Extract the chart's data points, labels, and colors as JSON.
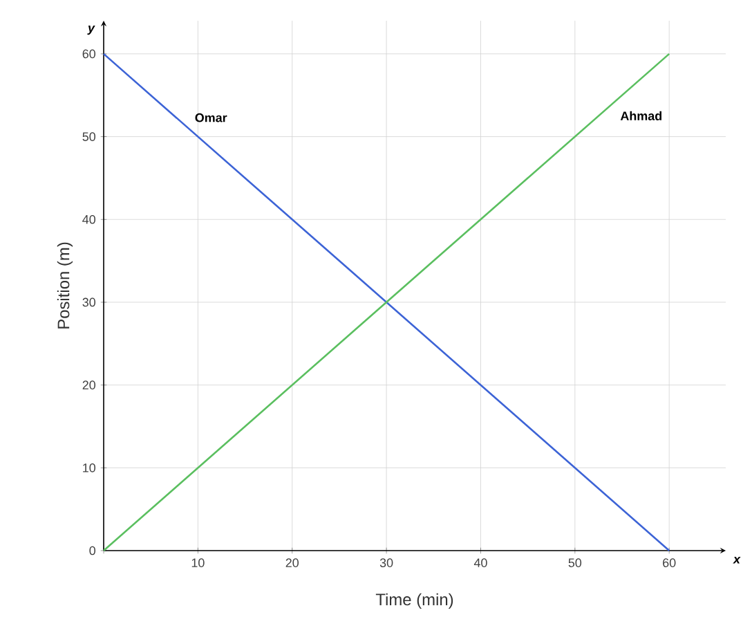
{
  "chart_data": {
    "type": "line",
    "xlabel": "Time (min)",
    "ylabel": "Position (m)",
    "x": [
      0,
      60
    ],
    "series": [
      {
        "name": "Omar",
        "color": "#3c63d6",
        "values": [
          60,
          0
        ]
      },
      {
        "name": "Ahmad",
        "color": "#5abf5f",
        "values": [
          0,
          60
        ]
      }
    ],
    "xlim": [
      0,
      66
    ],
    "ylim": [
      0,
      64
    ],
    "xticks": [
      {
        "value": 0,
        "label": null
      },
      10,
      20,
      30,
      40,
      50,
      60
    ],
    "yticks": [
      0,
      10,
      20,
      30,
      40,
      50,
      60
    ],
    "annotations": [
      "x",
      "y"
    ],
    "grid": true,
    "marker": "none",
    "line_style": "solid"
  }
}
